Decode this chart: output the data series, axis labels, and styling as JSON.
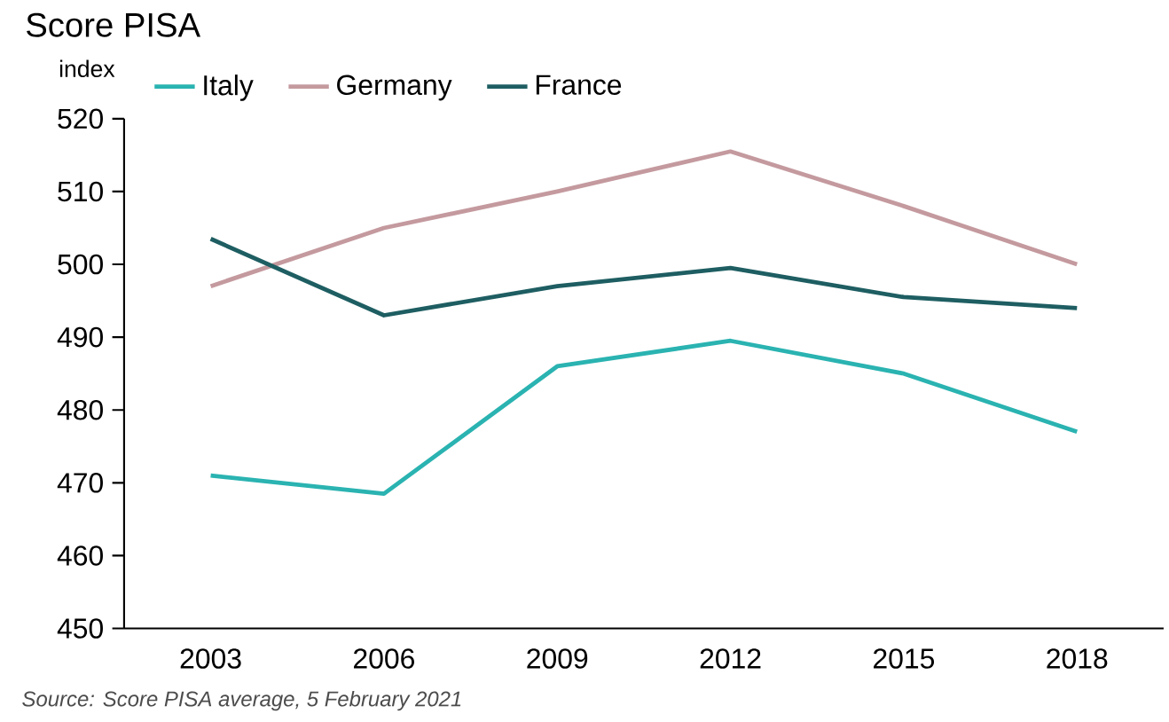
{
  "chart_data": {
    "type": "line",
    "title": "Score PISA",
    "ylabel": "index",
    "categories": [
      "2003",
      "2006",
      "2009",
      "2012",
      "2015",
      "2018"
    ],
    "series": [
      {
        "name": "Italy",
        "color": "#2ab3b1",
        "values": [
          471,
          468.5,
          486,
          489.5,
          485,
          477
        ]
      },
      {
        "name": "Germany",
        "color": "#c49a9f",
        "values": [
          497,
          505,
          510,
          515.5,
          508,
          500
        ]
      },
      {
        "name": "France",
        "color": "#1e5e62",
        "values": [
          503.5,
          493,
          497,
          499.5,
          495.5,
          494
        ]
      }
    ],
    "ylim": [
      450,
      520
    ],
    "yticks": [
      450,
      460,
      470,
      480,
      490,
      500,
      510,
      520
    ],
    "legend": "top",
    "grid": false,
    "line_style": "solid",
    "annotations": [
      "Source: Score PISA average, 5 February 2021"
    ]
  }
}
